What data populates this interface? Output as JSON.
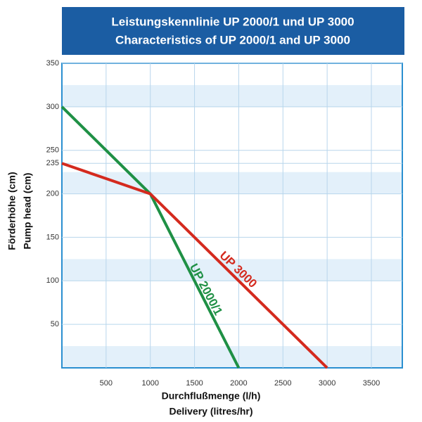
{
  "chart_data": {
    "type": "line",
    "title": [
      "Leistungskennlinie UP 2000/1 und UP 3000",
      "Characteristics of UP 2000/1 and UP 3000"
    ],
    "xlabel": [
      "Durchflußmenge (l/h)",
      "Delivery (litres/hr)"
    ],
    "ylabel": [
      "Förderhöhe (cm)",
      "Pump head (cm)"
    ],
    "series": [
      {
        "name": "UP 2000/1",
        "color": "#1f9045",
        "x": [
          0,
          1000,
          2000
        ],
        "values": [
          300,
          200,
          0
        ]
      },
      {
        "name": "UP 3000",
        "color": "#d42a1e",
        "x": [
          0,
          1000,
          3000
        ],
        "values": [
          235,
          200,
          0
        ]
      }
    ],
    "xlim": [
      0,
      3850
    ],
    "ylim": [
      0,
      350
    ],
    "xticks": [
      500,
      1000,
      1500,
      2000,
      2500,
      3000,
      3500
    ],
    "yticks": [
      50,
      100,
      150,
      200,
      235,
      250,
      300,
      350
    ],
    "grid": true
  }
}
